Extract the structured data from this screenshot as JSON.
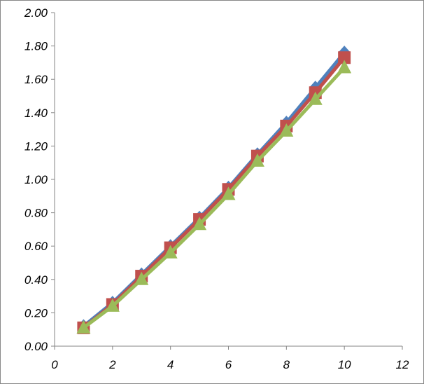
{
  "chart_data": {
    "type": "line",
    "title": "",
    "xlabel": "",
    "ylabel": "",
    "xlim": [
      0,
      12
    ],
    "ylim": [
      0,
      2.0
    ],
    "x_ticks": [
      "0",
      "2",
      "4",
      "6",
      "8",
      "10",
      "12"
    ],
    "y_ticks": [
      "0.00",
      "0.20",
      "0.40",
      "0.60",
      "0.80",
      "1.00",
      "1.20",
      "1.40",
      "1.60",
      "1.80",
      "2.00"
    ],
    "grid": false,
    "legend": "none",
    "x": [
      1,
      2,
      3,
      4,
      5,
      6,
      7,
      8,
      9,
      10
    ],
    "series": [
      {
        "marker": "diamond",
        "color": "#4f81bd",
        "values": [
          0.12,
          0.26,
          0.43,
          0.6,
          0.77,
          0.95,
          1.15,
          1.34,
          1.55,
          1.76
        ]
      },
      {
        "marker": "square",
        "color": "#c0504d",
        "values": [
          0.11,
          0.25,
          0.42,
          0.59,
          0.76,
          0.94,
          1.14,
          1.32,
          1.52,
          1.73
        ]
      },
      {
        "marker": "triangle",
        "color": "#9bbb59",
        "values": [
          0.11,
          0.24,
          0.4,
          0.56,
          0.73,
          0.91,
          1.11,
          1.29,
          1.48,
          1.67
        ]
      }
    ]
  }
}
